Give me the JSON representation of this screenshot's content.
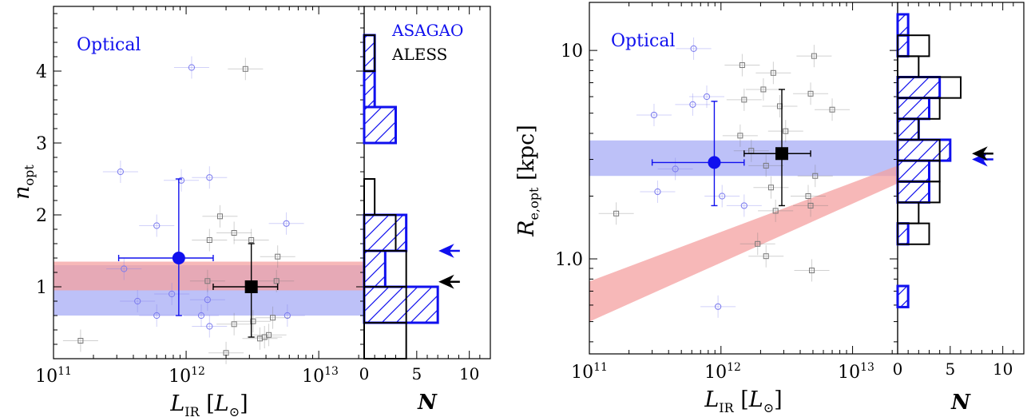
{
  "colors": {
    "asagao": "#1010ee",
    "aless": "#000000",
    "optical_band": "#9aa0f5",
    "model_band": "#f4a0a0",
    "asagao_points": "#7b7bee",
    "aless_points": "#777777"
  },
  "chart_data": [
    {
      "type": "scatter",
      "panel": "left-scatter",
      "xlabel": "L_IR [L_⊙]",
      "ylabel": "n_opt",
      "xscale": "log",
      "xlim": [
        100000000000.0,
        22000000000000.0
      ],
      "ylim": [
        0,
        4.9
      ],
      "yticks": [
        1,
        2,
        3,
        4
      ],
      "annotation": "Optical",
      "bands": [
        {
          "name": "optical",
          "y": [
            0.6,
            1.3
          ],
          "color": "#9aa0f5"
        },
        {
          "name": "model",
          "y": [
            0.95,
            1.35
          ],
          "color": "#f4a0a0"
        }
      ],
      "series": [
        {
          "name": "ASAGAO",
          "marker": "circle",
          "points": [
            {
              "x": 1100000000000.0,
              "y": 4.05
            },
            {
              "x": 600000000000.0,
              "y": 1.85
            },
            {
              "x": 320000000000.0,
              "y": 2.6
            },
            {
              "x": 920000000000.0,
              "y": 2.48
            },
            {
              "x": 1500000000000.0,
              "y": 2.52
            },
            {
              "x": 340000000000.0,
              "y": 1.25
            },
            {
              "x": 430000000000.0,
              "y": 0.8
            },
            {
              "x": 780000000000.0,
              "y": 0.9
            },
            {
              "x": 600000000000.0,
              "y": 0.6
            },
            {
              "x": 1450000000000.0,
              "y": 0.82
            },
            {
              "x": 1300000000000.0,
              "y": 0.6
            },
            {
              "x": 1500000000000.0,
              "y": 0.45
            },
            {
              "x": 5700000000000.0,
              "y": 1.88
            },
            {
              "x": 5800000000000.0,
              "y": 0.6
            }
          ],
          "mean": {
            "x": 880000000000.0,
            "y": 1.4,
            "xerr": [
              310000000000.0,
              1600000000000.0
            ],
            "yerr": [
              0.6,
              2.5
            ]
          }
        },
        {
          "name": "ALESS",
          "marker": "square",
          "points": [
            {
              "x": 2800000000000.0,
              "y": 4.03
            },
            {
              "x": 160000000000.0,
              "y": 0.25
            },
            {
              "x": 1800000000000.0,
              "y": 1.98
            },
            {
              "x": 1500000000000.0,
              "y": 1.65
            },
            {
              "x": 2300000000000.0,
              "y": 1.75
            },
            {
              "x": 3100000000000.0,
              "y": 1.65
            },
            {
              "x": 4900000000000.0,
              "y": 1.42
            },
            {
              "x": 1450000000000.0,
              "y": 1.08
            },
            {
              "x": 4800000000000.0,
              "y": 1.08
            },
            {
              "x": 2300000000000.0,
              "y": 0.48
            },
            {
              "x": 3200000000000.0,
              "y": 0.52
            },
            {
              "x": 4500000000000.0,
              "y": 0.57
            },
            {
              "x": 4200000000000.0,
              "y": 0.33
            },
            {
              "x": 3900000000000.0,
              "y": 0.3
            },
            {
              "x": 3600000000000.0,
              "y": 0.28
            },
            {
              "x": 2000000000000.0,
              "y": 0.08
            }
          ],
          "mean": {
            "x": 3100000000000.0,
            "y": 1.0,
            "xerr": [
              1600000000000.0,
              4900000000000.0
            ],
            "yerr": [
              0.3,
              1.6
            ]
          }
        }
      ]
    },
    {
      "type": "bar",
      "panel": "left-histogram",
      "orientation": "horizontal",
      "xlabel": "N",
      "xlim": [
        0,
        12
      ],
      "xticks": [
        0,
        5,
        10
      ],
      "legend": [
        "ASAGAO",
        "ALESS"
      ],
      "bins": [
        [
          0,
          0.5
        ],
        [
          0.5,
          1.0
        ],
        [
          1.0,
          1.5
        ],
        [
          1.5,
          2.0
        ],
        [
          2.0,
          2.5
        ],
        [
          2.5,
          3.0
        ],
        [
          3.0,
          3.5
        ],
        [
          3.5,
          4.0
        ],
        [
          4.0,
          4.5
        ]
      ],
      "series": [
        {
          "name": "ASAGAO",
          "values": [
            0,
            7,
            2,
            4,
            0,
            0,
            3,
            1,
            1
          ],
          "median": 1.5
        },
        {
          "name": "ALESS",
          "values": [
            4,
            4,
            4,
            3,
            1,
            0,
            0,
            0,
            1
          ],
          "median": 1.07
        }
      ]
    },
    {
      "type": "scatter",
      "panel": "right-scatter",
      "xlabel": "L_IR [L_⊙]",
      "ylabel": "R_e,opt [kpc]",
      "xscale": "log",
      "yscale": "log",
      "xlim": [
        100000000000.0,
        22000000000000.0
      ],
      "ylim": [
        0.35,
        17
      ],
      "yticks": [
        1.0,
        10
      ],
      "annotation": "Optical",
      "bands": [
        {
          "name": "optical",
          "y": [
            2.5,
            3.7
          ],
          "color": "#9aa0f5"
        },
        {
          "name": "model",
          "color": "#f4a0a0",
          "lower": [
            [
              100000000000.0,
              0.5
            ],
            [
              22000000000000.0,
              2.3
            ]
          ],
          "upper": [
            [
              100000000000.0,
              0.78
            ],
            [
              22000000000000.0,
              2.8
            ]
          ]
        }
      ],
      "series": [
        {
          "name": "ASAGAO",
          "marker": "circle",
          "points": [
            {
              "x": 620000000000.0,
              "y": 10.2
            },
            {
              "x": 610000000000.0,
              "y": 5.5
            },
            {
              "x": 780000000000.0,
              "y": 6.0
            },
            {
              "x": 310000000000.0,
              "y": 4.9
            },
            {
              "x": 450000000000.0,
              "y": 2.7
            },
            {
              "x": 330000000000.0,
              "y": 2.1
            },
            {
              "x": 1020000000000.0,
              "y": 2.0
            },
            {
              "x": 1500000000000.0,
              "y": 1.8
            },
            {
              "x": 950000000000.0,
              "y": 0.59
            }
          ],
          "mean": {
            "x": 890000000000.0,
            "y": 2.9,
            "xerr": [
              300000000000.0,
              1500000000000.0
            ],
            "yerr": [
              1.8,
              5.7
            ]
          }
        },
        {
          "name": "ALESS",
          "marker": "square",
          "points": [
            {
              "x": 160000000000.0,
              "y": 1.65
            },
            {
              "x": 1450000000000.0,
              "y": 8.5
            },
            {
              "x": 2100000000000.0,
              "y": 6.5
            },
            {
              "x": 2500000000000.0,
              "y": 7.8
            },
            {
              "x": 5100000000000.0,
              "y": 9.4
            },
            {
              "x": 1500000000000.0,
              "y": 5.8
            },
            {
              "x": 2800000000000.0,
              "y": 5.4
            },
            {
              "x": 4800000000000.0,
              "y": 6.2
            },
            {
              "x": 7000000000000.0,
              "y": 5.2
            },
            {
              "x": 1400000000000.0,
              "y": 3.9
            },
            {
              "x": 3100000000000.0,
              "y": 4.1
            },
            {
              "x": 1700000000000.0,
              "y": 3.3
            },
            {
              "x": 2200000000000.0,
              "y": 2.8
            },
            {
              "x": 2400000000000.0,
              "y": 2.2
            },
            {
              "x": 4600000000000.0,
              "y": 2.0
            },
            {
              "x": 2600000000000.0,
              "y": 1.7
            },
            {
              "x": 4800000000000.0,
              "y": 1.8
            },
            {
              "x": 1900000000000.0,
              "y": 1.18
            },
            {
              "x": 2200000000000.0,
              "y": 1.03
            },
            {
              "x": 4900000000000.0,
              "y": 0.88
            },
            {
              "x": 5200000000000.0,
              "y": 2.5
            }
          ],
          "mean": {
            "x": 2900000000000.0,
            "y": 3.2,
            "xerr": [
              1500000000000.0,
              4800000000000.0
            ],
            "yerr": [
              1.8,
              6.5
            ]
          }
        }
      ]
    },
    {
      "type": "bar",
      "panel": "right-histogram",
      "orientation": "horizontal",
      "xlabel": "N",
      "xlim": [
        0,
        12
      ],
      "xticks": [
        0,
        5,
        10
      ],
      "bins": [
        [
          0.587,
          0.741
        ],
        [
          0.741,
          0.933
        ],
        [
          0.933,
          1.175
        ],
        [
          1.175,
          1.48
        ],
        [
          1.48,
          1.865
        ],
        [
          1.865,
          2.349
        ],
        [
          2.349,
          2.959
        ],
        [
          2.959,
          3.728
        ],
        [
          3.728,
          4.695
        ],
        [
          4.695,
          5.915
        ],
        [
          5.915,
          7.45
        ],
        [
          7.45,
          9.38
        ],
        [
          9.38,
          11.82
        ],
        [
          11.82,
          14.9
        ]
      ],
      "series": [
        {
          "name": "ASAGAO",
          "values": [
            1,
            0,
            0,
            1,
            0,
            3,
            3,
            5,
            2,
            3,
            4,
            0,
            1,
            1
          ],
          "median": 3.0
        },
        {
          "name": "ALESS",
          "values": [
            0,
            0,
            0,
            3,
            2,
            4,
            4,
            4,
            2,
            4,
            6,
            2,
            3,
            0
          ],
          "median": 3.2
        }
      ]
    }
  ]
}
